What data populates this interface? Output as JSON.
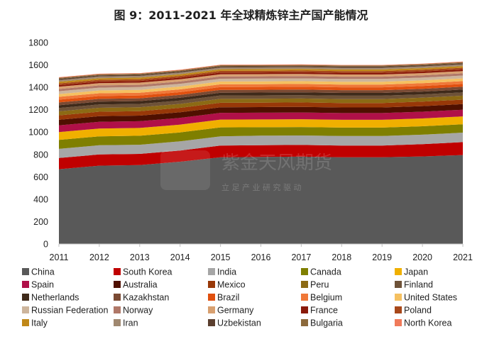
{
  "chart_data": {
    "type": "area",
    "title": "图 9：2011-2021 年全球精炼锌主产国产能情况",
    "xlabel": "",
    "ylabel": "",
    "ylim": [
      0,
      1800
    ],
    "yticks": [
      0,
      200,
      400,
      600,
      800,
      1000,
      1200,
      1400,
      1600,
      1800
    ],
    "x": [
      "2011",
      "2012",
      "2013",
      "2014",
      "2015",
      "2016",
      "2017",
      "2018",
      "2019",
      "2020",
      "2021"
    ],
    "stacked": true,
    "grid": false,
    "legend_position": "bottom",
    "series": [
      {
        "name": "China",
        "color": "#595959",
        "values": [
          668,
          700,
          705,
          735,
          775,
          778,
          780,
          775,
          775,
          782,
          795
        ]
      },
      {
        "name": "South Korea",
        "color": "#c00000",
        "values": [
          100,
          100,
          100,
          100,
          105,
          105,
          105,
          105,
          105,
          110,
          115
        ]
      },
      {
        "name": "India",
        "color": "#a6a6a6",
        "values": [
          82,
          82,
          82,
          82,
          82,
          85,
          85,
          85,
          85,
          85,
          85
        ]
      },
      {
        "name": "Canada",
        "color": "#7f7f00",
        "values": [
          80,
          80,
          80,
          80,
          80,
          75,
          75,
          75,
          75,
          75,
          75
        ]
      },
      {
        "name": "Japan",
        "color": "#f0b000",
        "values": [
          70,
          70,
          70,
          70,
          70,
          70,
          70,
          70,
          70,
          70,
          70
        ]
      },
      {
        "name": "Spain",
        "color": "#b01048",
        "values": [
          60,
          60,
          60,
          60,
          60,
          60,
          60,
          60,
          60,
          60,
          60
        ]
      },
      {
        "name": "Australia",
        "color": "#4f1000",
        "values": [
          50,
          50,
          50,
          50,
          50,
          50,
          50,
          50,
          50,
          50,
          50
        ]
      },
      {
        "name": "Mexico",
        "color": "#983808",
        "values": [
          40,
          40,
          40,
          40,
          40,
          40,
          40,
          40,
          40,
          40,
          40
        ]
      },
      {
        "name": "Peru",
        "color": "#8c6a14",
        "values": [
          35,
          35,
          35,
          35,
          35,
          35,
          35,
          35,
          35,
          35,
          35
        ]
      },
      {
        "name": "Finland",
        "color": "#6e5238",
        "values": [
          30,
          30,
          30,
          30,
          30,
          30,
          30,
          30,
          30,
          30,
          30
        ]
      },
      {
        "name": "Netherlands",
        "color": "#3f2a1a",
        "values": [
          25,
          25,
          25,
          25,
          25,
          25,
          25,
          25,
          25,
          25,
          25
        ]
      },
      {
        "name": "Kazakhstan",
        "color": "#7a4a33",
        "values": [
          25,
          25,
          25,
          25,
          25,
          25,
          25,
          25,
          25,
          25,
          25
        ]
      },
      {
        "name": "Brazil",
        "color": "#e0500f",
        "values": [
          25,
          25,
          25,
          25,
          25,
          25,
          25,
          25,
          25,
          25,
          25
        ]
      },
      {
        "name": "Belgium",
        "color": "#f07838",
        "values": [
          25,
          25,
          25,
          25,
          25,
          25,
          25,
          25,
          25,
          25,
          25
        ]
      },
      {
        "name": "United States",
        "color": "#f5c060",
        "values": [
          25,
          25,
          25,
          25,
          25,
          25,
          25,
          25,
          25,
          25,
          25
        ]
      },
      {
        "name": "Russian Federation",
        "color": "#cdb59c",
        "values": [
          25,
          25,
          25,
          25,
          25,
          25,
          25,
          25,
          25,
          25,
          25
        ]
      },
      {
        "name": "Norway",
        "color": "#b07868",
        "values": [
          20,
          20,
          20,
          20,
          20,
          20,
          20,
          20,
          20,
          20,
          20
        ]
      },
      {
        "name": "Germany",
        "color": "#d8a070",
        "values": [
          20,
          20,
          20,
          20,
          20,
          20,
          20,
          20,
          20,
          20,
          20
        ]
      },
      {
        "name": "France",
        "color": "#8a1a0a",
        "values": [
          15,
          15,
          15,
          15,
          15,
          15,
          15,
          15,
          15,
          15,
          15
        ]
      },
      {
        "name": "Poland",
        "color": "#a8481a",
        "values": [
          15,
          15,
          15,
          15,
          15,
          15,
          15,
          15,
          15,
          15,
          15
        ]
      },
      {
        "name": "Italy",
        "color": "#c08818",
        "values": [
          15,
          15,
          15,
          15,
          15,
          15,
          15,
          15,
          15,
          15,
          15
        ]
      },
      {
        "name": "Iran",
        "color": "#a08870",
        "values": [
          15,
          15,
          15,
          15,
          15,
          15,
          15,
          15,
          15,
          15,
          15
        ]
      },
      {
        "name": "Uzbekistan",
        "color": "#5a3e2e",
        "values": [
          10,
          10,
          10,
          10,
          10,
          10,
          10,
          10,
          10,
          10,
          10
        ]
      },
      {
        "name": "Bulgaria",
        "color": "#8c6a3c",
        "values": [
          10,
          10,
          10,
          10,
          10,
          10,
          10,
          10,
          10,
          10,
          10
        ]
      },
      {
        "name": "North Korea",
        "color": "#f07a5a",
        "values": [
          5,
          5,
          5,
          5,
          5,
          5,
          5,
          5,
          5,
          5,
          5
        ]
      }
    ]
  },
  "watermark": {
    "main": "紫金天风期货",
    "sub": "立 足 产 业   研 究 驱 动"
  }
}
